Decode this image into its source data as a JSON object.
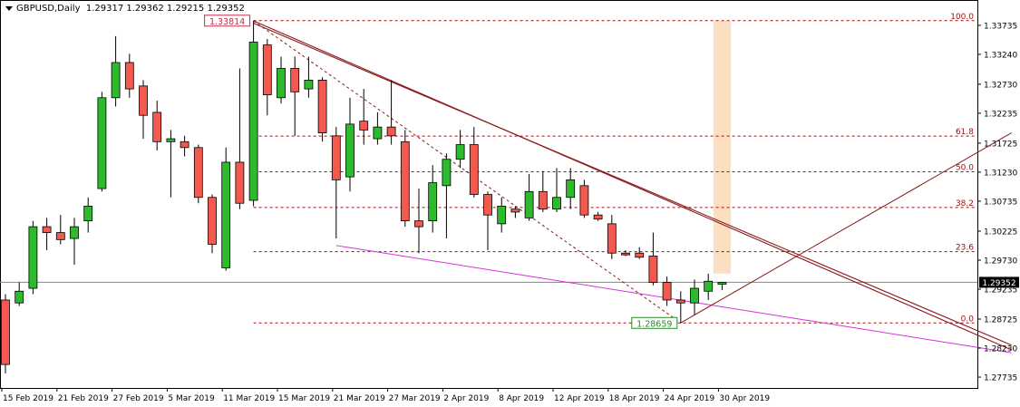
{
  "header": {
    "symbol": "GBPUSD,Daily",
    "ohlc": "1.29317 1.29362 1.29215 1.29352"
  },
  "colors": {
    "bull": "#2dbb2d",
    "bear": "#f25a50",
    "trend": "#8b1a1a",
    "support": "#d633d6",
    "fib": "#a01010",
    "zone": "#fbd9b6",
    "price_line": "#7a8a9a"
  },
  "chart_data": {
    "type": "candlestick",
    "title": "GBPUSD,Daily",
    "ylim": [
      1.2755,
      1.3395
    ],
    "y_ticks": [
      "1.33735",
      "1.33240",
      "1.32730",
      "1.32235",
      "1.31725",
      "1.31230",
      "1.30735",
      "1.30225",
      "1.29730",
      "1.29235",
      "1.28725",
      "1.28230",
      "1.27735"
    ],
    "x_tick_labels": [
      {
        "label": "15 Feb 2019",
        "index": 0
      },
      {
        "label": "21 Feb 2019",
        "index": 4
      },
      {
        "label": "27 Feb 2019",
        "index": 8
      },
      {
        "label": "5 Mar 2019",
        "index": 12
      },
      {
        "label": "11 Mar 2019",
        "index": 16
      },
      {
        "label": "15 Mar 2019",
        "index": 20
      },
      {
        "label": "21 Mar 2019",
        "index": 24
      },
      {
        "label": "27 Mar 2019",
        "index": 28
      },
      {
        "label": "2 Apr 2019",
        "index": 32
      },
      {
        "label": "8 Apr 2019",
        "index": 36
      },
      {
        "label": "12 Apr 2019",
        "index": 40
      },
      {
        "label": "18 Apr 2019",
        "index": 44
      },
      {
        "label": "24 Apr 2019",
        "index": 48
      },
      {
        "label": "30 Apr 2019",
        "index": 52
      }
    ],
    "current_price": "1.29352",
    "high_label": "1.33814",
    "low_label": "1.28659",
    "fibonacci": {
      "high": 1.33814,
      "low": 1.28659,
      "levels": [
        {
          "label": "100.0",
          "ratio": 1.0
        },
        {
          "label": "61.8",
          "ratio": 0.618
        },
        {
          "label": "50.0",
          "ratio": 0.5
        },
        {
          "label": "38.2",
          "ratio": 0.382
        },
        {
          "label": "23.6",
          "ratio": 0.236
        },
        {
          "label": "0.0",
          "ratio": 0.0
        }
      ]
    },
    "candles": [
      {
        "o": 1.2905,
        "h": 1.2915,
        "l": 1.278,
        "c": 1.2795
      },
      {
        "o": 1.29,
        "h": 1.2935,
        "l": 1.2895,
        "c": 1.292
      },
      {
        "o": 1.2925,
        "h": 1.304,
        "l": 1.2915,
        "c": 1.303
      },
      {
        "o": 1.303,
        "h": 1.3045,
        "l": 1.299,
        "c": 1.302
      },
      {
        "o": 1.302,
        "h": 1.305,
        "l": 1.3,
        "c": 1.3008
      },
      {
        "o": 1.301,
        "h": 1.3045,
        "l": 1.2965,
        "c": 1.303
      },
      {
        "o": 1.304,
        "h": 1.308,
        "l": 1.302,
        "c": 1.3065
      },
      {
        "o": 1.3095,
        "h": 1.326,
        "l": 1.309,
        "c": 1.325
      },
      {
        "o": 1.325,
        "h": 1.3355,
        "l": 1.3235,
        "c": 1.331
      },
      {
        "o": 1.331,
        "h": 1.3325,
        "l": 1.325,
        "c": 1.3265
      },
      {
        "o": 1.327,
        "h": 1.328,
        "l": 1.318,
        "c": 1.322
      },
      {
        "o": 1.3225,
        "h": 1.3245,
        "l": 1.316,
        "c": 1.3175
      },
      {
        "o": 1.3175,
        "h": 1.3195,
        "l": 1.308,
        "c": 1.318
      },
      {
        "o": 1.3175,
        "h": 1.3185,
        "l": 1.315,
        "c": 1.3165
      },
      {
        "o": 1.3165,
        "h": 1.317,
        "l": 1.307,
        "c": 1.308
      },
      {
        "o": 1.308,
        "h": 1.3085,
        "l": 1.2985,
        "c": 1.3
      },
      {
        "o": 1.296,
        "h": 1.3165,
        "l": 1.2955,
        "c": 1.314
      },
      {
        "o": 1.314,
        "h": 1.33,
        "l": 1.306,
        "c": 1.307
      },
      {
        "o": 1.3075,
        "h": 1.3381,
        "l": 1.3065,
        "c": 1.3345
      },
      {
        "o": 1.334,
        "h": 1.335,
        "l": 1.322,
        "c": 1.3255
      },
      {
        "o": 1.325,
        "h": 1.332,
        "l": 1.324,
        "c": 1.33
      },
      {
        "o": 1.33,
        "h": 1.332,
        "l": 1.3185,
        "c": 1.326
      },
      {
        "o": 1.3265,
        "h": 1.332,
        "l": 1.325,
        "c": 1.328
      },
      {
        "o": 1.328,
        "h": 1.3285,
        "l": 1.3175,
        "c": 1.319
      },
      {
        "o": 1.3185,
        "h": 1.32,
        "l": 1.301,
        "c": 1.311
      },
      {
        "o": 1.3115,
        "h": 1.325,
        "l": 1.309,
        "c": 1.3205
      },
      {
        "o": 1.321,
        "h": 1.3265,
        "l": 1.317,
        "c": 1.3195
      },
      {
        "o": 1.318,
        "h": 1.3225,
        "l": 1.317,
        "c": 1.32
      },
      {
        "o": 1.32,
        "h": 1.328,
        "l": 1.317,
        "c": 1.3185
      },
      {
        "o": 1.3175,
        "h": 1.3195,
        "l": 1.303,
        "c": 1.304
      },
      {
        "o": 1.304,
        "h": 1.3095,
        "l": 1.2985,
        "c": 1.303
      },
      {
        "o": 1.304,
        "h": 1.3135,
        "l": 1.302,
        "c": 1.3105
      },
      {
        "o": 1.31,
        "h": 1.3155,
        "l": 1.301,
        "c": 1.3145
      },
      {
        "o": 1.3145,
        "h": 1.3195,
        "l": 1.313,
        "c": 1.317
      },
      {
        "o": 1.317,
        "h": 1.32,
        "l": 1.308,
        "c": 1.3085
      },
      {
        "o": 1.3085,
        "h": 1.309,
        "l": 1.299,
        "c": 1.305
      },
      {
        "o": 1.3035,
        "h": 1.308,
        "l": 1.302,
        "c": 1.3065
      },
      {
        "o": 1.306,
        "h": 1.3065,
        "l": 1.3045,
        "c": 1.3055
      },
      {
        "o": 1.3045,
        "h": 1.312,
        "l": 1.304,
        "c": 1.309
      },
      {
        "o": 1.309,
        "h": 1.3125,
        "l": 1.3055,
        "c": 1.306
      },
      {
        "o": 1.306,
        "h": 1.313,
        "l": 1.3055,
        "c": 1.308
      },
      {
        "o": 1.308,
        "h": 1.313,
        "l": 1.306,
        "c": 1.311
      },
      {
        "o": 1.31,
        "h": 1.311,
        "l": 1.3045,
        "c": 1.305
      },
      {
        "o": 1.305,
        "h": 1.3055,
        "l": 1.304,
        "c": 1.3043
      },
      {
        "o": 1.3035,
        "h": 1.305,
        "l": 1.2975,
        "c": 1.2985
      },
      {
        "o": 1.2985,
        "h": 1.299,
        "l": 1.298,
        "c": 1.2982
      },
      {
        "o": 1.2985,
        "h": 1.2995,
        "l": 1.2975,
        "c": 1.2978
      },
      {
        "o": 1.298,
        "h": 1.302,
        "l": 1.293,
        "c": 1.2935
      },
      {
        "o": 1.2935,
        "h": 1.2945,
        "l": 1.2895,
        "c": 1.2905
      },
      {
        "o": 1.2905,
        "h": 1.292,
        "l": 1.2866,
        "c": 1.29
      },
      {
        "o": 1.29,
        "h": 1.294,
        "l": 1.288,
        "c": 1.2925
      },
      {
        "o": 1.292,
        "h": 1.295,
        "l": 1.2905,
        "c": 1.2937
      },
      {
        "o": 1.2932,
        "h": 1.2936,
        "l": 1.2922,
        "c": 1.2935
      }
    ],
    "trend_lines": [
      {
        "name": "resistance-outer",
        "from": {
          "i": 18,
          "p": 1.3381
        },
        "to": {
          "i": 73,
          "p": 1.282
        }
      },
      {
        "name": "resistance-inner",
        "from": {
          "i": 18,
          "p": 1.3377
        },
        "to": {
          "i": 73,
          "p": 1.2828
        }
      },
      {
        "name": "dashed-decline",
        "from": {
          "i": 18,
          "p": 1.3381
        },
        "to": {
          "i": 49,
          "p": 1.2866
        }
      },
      {
        "name": "support",
        "from": {
          "i": 24,
          "p": 1.2998
        },
        "to": {
          "i": 73,
          "p": 1.2815
        }
      },
      {
        "name": "rise",
        "from": {
          "i": 49,
          "p": 1.2866
        },
        "to": {
          "i": 73,
          "p": 1.319
        }
      }
    ],
    "highlight_zone": {
      "from_i": 51.5,
      "to_i": 52.5,
      "p_high": 1.3381,
      "p_low": 1.295
    }
  }
}
